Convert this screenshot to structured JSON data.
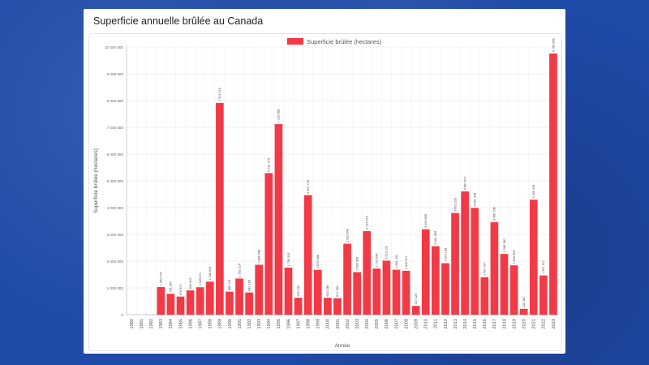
{
  "page": {
    "title": "Superficie annuelle brûlée au Canada"
  },
  "chart_data": {
    "type": "bar",
    "title": "",
    "legend": "Superficie brûlée (hectares)",
    "legend_position": "top",
    "xlabel": "Année",
    "ylabel": "Superficie brûlée (hectares)",
    "ylim": [
      0,
      10000000
    ],
    "yticks": [
      0,
      1000000,
      2000000,
      3000000,
      4000000,
      5000000,
      6000000,
      7000000,
      8000000,
      9000000,
      10000000
    ],
    "ytick_labels": [
      "0",
      "1 000 000",
      "2 000 000",
      "3 000 000",
      "4 000 000",
      "5 000 000",
      "6 000 000",
      "7 000 000",
      "8 000 000",
      "9 000 000",
      "10 000 000"
    ],
    "bar_color": "#f23a47",
    "categories": [
      "1980",
      "1981",
      "1982",
      "1983",
      "1984",
      "1985",
      "1986",
      "1987",
      "1988",
      "1989",
      "1990",
      "1991",
      "1992",
      "1993",
      "1994",
      "1995",
      "1996",
      "1997",
      "1998",
      "1999",
      "2000",
      "2001",
      "2002",
      "2003",
      "2004",
      "2005",
      "2006",
      "2007",
      "2008",
      "2009",
      "2010",
      "2011",
      "2012",
      "2013",
      "2014",
      "2015",
      "2016",
      "2017",
      "2018",
      "2019",
      "2020",
      "2021",
      "2022",
      "2023"
    ],
    "values": [
      null,
      null,
      null,
      1032976,
      781654,
      676972,
      909615,
      1025071,
      1236643,
      7913076,
      860161,
      1352314,
      831180,
      1866058,
      5291479,
      7120388,
      1759202,
      632233,
      4467743,
      1676586,
      632238,
      617262,
      2652645,
      1590999,
      3124610,
      1723548,
      2019722,
      1681402,
      1640072,
      327420,
      3193839,
      2561289,
      1924138,
      3801220,
      4607677,
      3991036,
      1401427,
      3456758,
      2269180,
      1843903,
      220367,
      4296449,
      1467971,
      9759899
    ],
    "value_labels": [
      "",
      "",
      "",
      "1 032 976",
      "781 654",
      "676 972",
      "909 615",
      "1 025 071",
      "1 236 643",
      "7 913 076",
      "860 161",
      "1 352 314",
      "831 180",
      "1 866 058",
      "5 291 479",
      "7 120 388",
      "1 759 202",
      "632 233",
      "4 467 743",
      "1 676 586",
      "632 238",
      "617 262",
      "2 652 645",
      "1 590 999",
      "3 124 610",
      "1 723 548",
      "2 019 722",
      "1 681 402",
      "1 640 072",
      "327 420",
      "3 193 839",
      "2 561 289",
      "1 924 138",
      "3 801 220",
      "4 607 677",
      "3 991 036",
      "1 401 427",
      "3 456 758",
      "2 269 180",
      "1 843 903",
      "220 367",
      "4 296 449",
      "1 467 971",
      "9 759 899"
    ],
    "grid": true
  }
}
